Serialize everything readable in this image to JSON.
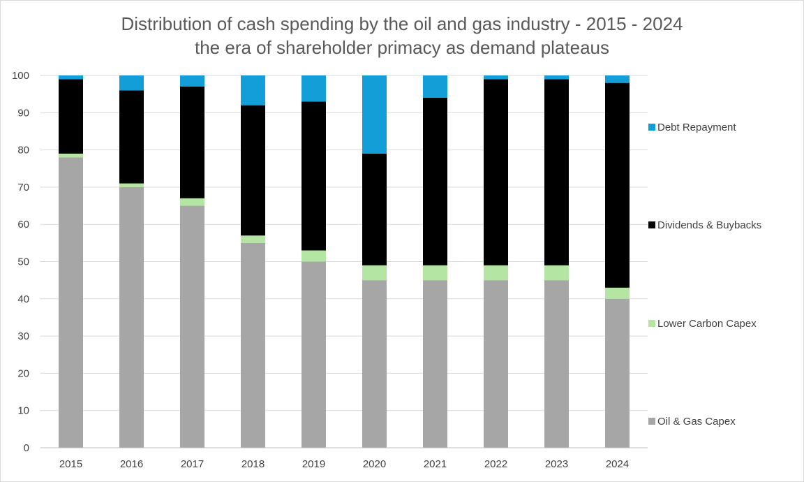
{
  "chart_data": {
    "type": "bar",
    "stacked": true,
    "title": "Distribution of cash spending by the oil and gas industry - 2015 - 2024",
    "subtitle": "the era of shareholder primacy as demand plateaus",
    "xlabel": "",
    "ylabel": "",
    "ylim": [
      0,
      100
    ],
    "yticks": [
      0,
      10,
      20,
      30,
      40,
      50,
      60,
      70,
      80,
      90,
      100
    ],
    "grid": true,
    "legend_position": "right",
    "categories": [
      "2015",
      "2016",
      "2017",
      "2018",
      "2019",
      "2020",
      "2021",
      "2022",
      "2023",
      "2024"
    ],
    "series": [
      {
        "name": "Oil & Gas Capex",
        "color": "#a6a6a6",
        "values": [
          78,
          70,
          65,
          55,
          50,
          45,
          45,
          45,
          45,
          40
        ]
      },
      {
        "name": "Lower Carbon Capex",
        "color": "#b4e5a2",
        "values": [
          1,
          1,
          2,
          2,
          3,
          4,
          4,
          4,
          4,
          3
        ]
      },
      {
        "name": "Dividends & Buybacks",
        "color": "#000000",
        "values": [
          20,
          25,
          30,
          35,
          40,
          30,
          45,
          50,
          50,
          55
        ]
      },
      {
        "name": "Debt Repayment",
        "color": "#149ed7",
        "values": [
          1,
          4,
          3,
          8,
          7,
          21,
          6,
          1,
          1,
          2
        ]
      }
    ],
    "legend_order": [
      "Debt Repayment",
      "Dividends & Buybacks",
      "Lower Carbon Capex",
      "Oil & Gas Capex"
    ]
  },
  "colors": {
    "grid": "#d9d9d9",
    "axis": "#bfbfbf",
    "text": "#404040",
    "title": "#595959"
  }
}
